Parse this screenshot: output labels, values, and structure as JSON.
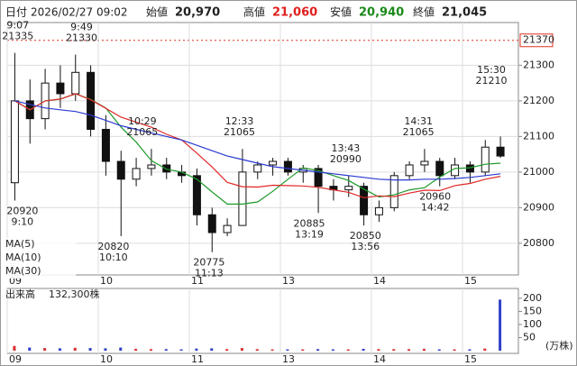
{
  "header": {
    "date_label": "日付",
    "date": "2026/02/27 09:02",
    "open_label": "始値",
    "open": {
      "value": 20970,
      "label": "20,970"
    },
    "high_label": "高値",
    "high": {
      "value": 21060,
      "label": "21,060"
    },
    "low_label": "安値",
    "low": {
      "value": 20940,
      "label": "20,940"
    },
    "close_label": "終値",
    "close": {
      "value": 21045,
      "label": "21,045"
    }
  },
  "chart_data": {
    "type": "candlestick",
    "x": [
      "09:00",
      "09:10",
      "09:20",
      "09:30",
      "09:40",
      "09:50",
      "10:00",
      "10:10",
      "10:20",
      "10:30",
      "10:40",
      "10:50",
      "11:00",
      "11:10",
      "11:20",
      "12:30",
      "12:40",
      "12:50",
      "13:00",
      "13:10",
      "13:20",
      "13:30",
      "13:40",
      "13:50",
      "14:00",
      "14:10",
      "14:20",
      "14:30",
      "14:40",
      "14:50",
      "15:00",
      "15:10",
      "15:20"
    ],
    "open": [
      20970,
      21200,
      21150,
      21250,
      21220,
      21280,
      21120,
      21030,
      20980,
      21010,
      21020,
      21000,
      20990,
      20880,
      20830,
      20850,
      21000,
      21020,
      21030,
      21000,
      21010,
      20960,
      20950,
      20960,
      20880,
      20900,
      20990,
      21020,
      21030,
      20990,
      21020,
      21000,
      21070
    ],
    "high": [
      21335,
      21260,
      21290,
      21300,
      21330,
      21300,
      21160,
      21060,
      21040,
      21065,
      21040,
      21020,
      21010,
      20900,
      20870,
      21065,
      21030,
      21040,
      21040,
      21020,
      21020,
      20980,
      20990,
      20970,
      20920,
      21000,
      21030,
      21065,
      21040,
      21040,
      21030,
      21090,
      21100
    ],
    "low": [
      20920,
      21080,
      21120,
      21180,
      21200,
      21100,
      20990,
      20820,
      20960,
      20990,
      20980,
      20970,
      20850,
      20775,
      20820,
      20850,
      20980,
      20990,
      20990,
      20970,
      20885,
      20920,
      20930,
      20850,
      20860,
      20890,
      20980,
      21000,
      20960,
      20980,
      20970,
      20990,
      21040
    ],
    "close": [
      21200,
      21150,
      21250,
      21220,
      21280,
      21120,
      21030,
      20980,
      21010,
      21020,
      21000,
      20990,
      20880,
      20830,
      20850,
      21000,
      21020,
      21030,
      21000,
      21010,
      20960,
      20950,
      20960,
      20880,
      20900,
      20990,
      21020,
      21030,
      20990,
      21020,
      21000,
      21070,
      21045
    ],
    "ma": [
      {
        "name": "MA(5)",
        "color": "#1f9a2a",
        "values": [
          21200,
          21175,
          21200,
          21205,
          21220,
          21204,
          21180,
          21126,
          21084,
          21032,
          21008,
          21000,
          20980,
          20944,
          20910,
          20910,
          20916,
          20946,
          20980,
          21012,
          21004,
          20990,
          20976,
          20952,
          20930,
          20936,
          20950,
          20956,
          20986,
          21010,
          21012,
          21022,
          21025
        ]
      },
      {
        "name": "MA(10)",
        "color": "#e02828",
        "values": [
          21200,
          21175,
          21200,
          21205,
          21220,
          21203,
          21179,
          21154,
          21140,
          21126,
          21106,
          21090,
          21053,
          21014,
          20971,
          20959,
          20958,
          20963,
          20962,
          20961,
          20957,
          20950,
          20943,
          20928,
          20933,
          20931,
          20941,
          20949,
          20948,
          20962,
          20968,
          20980,
          20988
        ]
      },
      {
        "name": "MA(30)",
        "color": "#2c3ad0",
        "values": [
          21200,
          21190,
          21180,
          21175,
          21170,
          21160,
          21145,
          21130,
          21120,
          21110,
          21100,
          21090,
          21075,
          21060,
          21045,
          21035,
          21025,
          21015,
          21010,
          21005,
          21000,
          20995,
          20990,
          20985,
          20980,
          20978,
          20978,
          20980,
          20980,
          20982,
          20985,
          20990,
          20995
        ]
      }
    ],
    "ylim": [
      20711,
      21420
    ],
    "yticks": [
      20800,
      20900,
      21000,
      21100,
      21200,
      21300
    ],
    "ref_price": {
      "value": 21370,
      "color": "#e0301e"
    },
    "xticks": [
      {
        "value": "09:00",
        "label": "09"
      },
      {
        "value": "10:00",
        "label": "10"
      },
      {
        "value": "11:00",
        "label": "11"
      },
      {
        "value": "13:00",
        "label": "13"
      },
      {
        "value": "14:00",
        "label": "14"
      },
      {
        "value": "15:00",
        "label": "15"
      }
    ],
    "annotations": [
      {
        "time": "9:07",
        "price": 21335,
        "kind": "high"
      },
      {
        "time": "9:49",
        "price": 21330,
        "kind": "high"
      },
      {
        "time": "10:29",
        "price": 21065,
        "kind": "high"
      },
      {
        "time": "12:33",
        "price": 21065,
        "kind": "high"
      },
      {
        "time": "13:43",
        "price": 20990,
        "kind": "high"
      },
      {
        "time": "14:31",
        "price": 21065,
        "kind": "high"
      },
      {
        "time": "15:30",
        "price": 21210,
        "kind": "high"
      },
      {
        "time": "9:10",
        "price": 20920,
        "kind": "low"
      },
      {
        "time": "10:10",
        "price": 20820,
        "kind": "low"
      },
      {
        "time": "11:13",
        "price": 20775,
        "kind": "low"
      },
      {
        "time": "13:19",
        "price": 20885,
        "kind": "low"
      },
      {
        "time": "13:56",
        "price": 20850,
        "kind": "low"
      },
      {
        "time": "14:42",
        "price": 20960,
        "kind": "low"
      }
    ],
    "volume": {
      "title": "出来高",
      "total": {
        "value": 132300,
        "label": "132,300株"
      },
      "unit": "(万株)",
      "values": [
        18,
        12,
        10,
        9,
        11,
        10,
        9,
        12,
        7,
        6,
        6,
        5,
        8,
        9,
        6,
        10,
        6,
        5,
        5,
        5,
        6,
        5,
        5,
        7,
        6,
        6,
        6,
        7,
        5,
        5,
        5,
        8,
        195
      ],
      "ylim": [
        0,
        234
      ],
      "yticks": [
        50,
        100,
        150,
        200
      ]
    }
  }
}
